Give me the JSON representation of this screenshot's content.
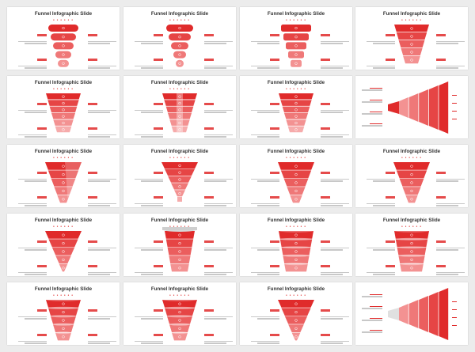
{
  "gallery": {
    "slide_title": "Funnel Infographic Slide",
    "accent": "#e02b2b",
    "light_accent": "#f3a0a0",
    "slides": [
      {
        "variant": "pills"
      },
      {
        "variant": "pills-narrow"
      },
      {
        "variant": "rounded-stack"
      },
      {
        "variant": "trapezoid"
      },
      {
        "variant": "bands-wide"
      },
      {
        "variant": "bands-columns"
      },
      {
        "variant": "bands-tilted"
      },
      {
        "variant": "horizontal-arrows"
      },
      {
        "variant": "cone-split"
      },
      {
        "variant": "cone-stem"
      },
      {
        "variant": "cone-smooth"
      },
      {
        "variant": "cone-curved"
      },
      {
        "variant": "cone-pointed"
      },
      {
        "variant": "cup-cap"
      },
      {
        "variant": "barrel"
      },
      {
        "variant": "barrel-rings"
      },
      {
        "variant": "tilted-rings"
      },
      {
        "variant": "tier-rings"
      },
      {
        "variant": "cone-bowl"
      },
      {
        "variant": "horizontal-cone"
      }
    ]
  }
}
